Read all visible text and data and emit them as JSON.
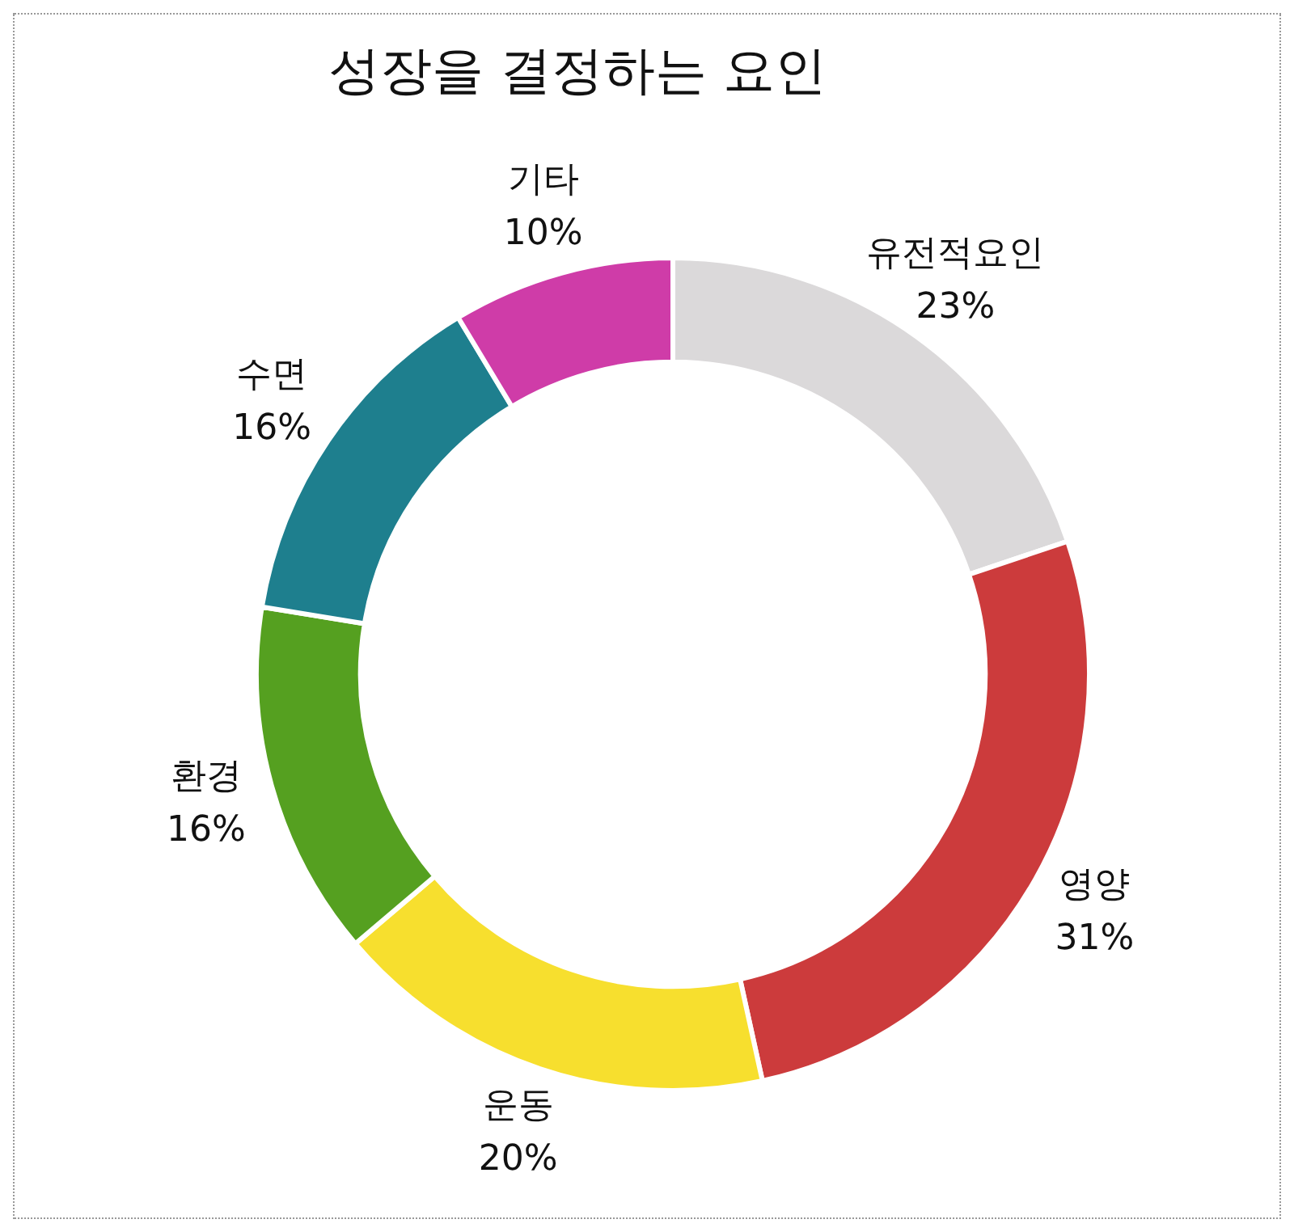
{
  "chart_data": {
    "type": "donut",
    "title": "성장을 결정하는 요인",
    "categories": [
      "유전적요인",
      "영양",
      "운동",
      "환경",
      "수면",
      "기타"
    ],
    "values": [
      23,
      31,
      20,
      16,
      16,
      10
    ],
    "colors": [
      "#dbd9da",
      "#cc3b3c",
      "#f7df2e",
      "#55a020",
      "#1e7f8e",
      "#cf3ca8"
    ],
    "value_labels": [
      "23%",
      "31%",
      "20%",
      "16%",
      "16%",
      "10%"
    ],
    "legend": false
  }
}
